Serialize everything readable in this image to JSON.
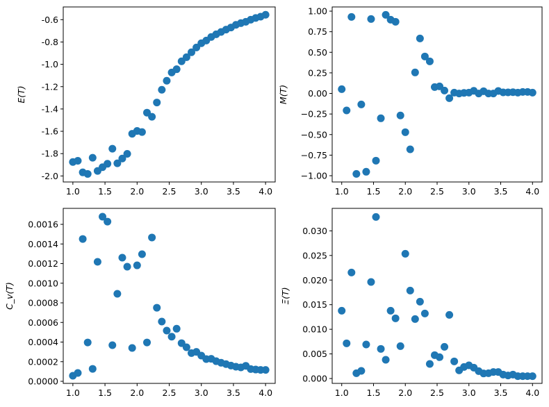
{
  "chart_data": [
    {
      "type": "scatter",
      "ylabel": "E(T)",
      "xlim": [
        0.85,
        4.15
      ],
      "ylim": [
        -2.054,
        -0.486
      ],
      "xticks": [
        "1.0",
        "1.5",
        "2.0",
        "2.5",
        "3.0",
        "3.5",
        "4.0"
      ],
      "yticks": [
        "-2.0",
        "-1.8",
        "-1.6",
        "-1.4",
        "-1.2",
        "-1.0",
        "-0.8",
        "-0.6"
      ],
      "color": "#1f77b4",
      "y": [
        -1.875,
        -1.864,
        -1.968,
        -1.982,
        -1.837,
        -1.955,
        -1.922,
        -1.891,
        -1.756,
        -1.887,
        -1.844,
        -1.802,
        -1.622,
        -1.597,
        -1.607,
        -1.433,
        -1.47,
        -1.342,
        -1.228,
        -1.147,
        -1.073,
        -1.044,
        -0.973,
        -0.936,
        -0.892,
        -0.849,
        -0.811,
        -0.787,
        -0.755,
        -0.731,
        -0.71,
        -0.689,
        -0.67,
        -0.646,
        -0.631,
        -0.619,
        -0.6,
        -0.585,
        -0.573,
        -0.556
      ]
    },
    {
      "type": "scatter",
      "ylabel": "M(T)",
      "xlim": [
        0.85,
        4.15
      ],
      "ylim": [
        -1.076,
        1.051
      ],
      "xticks": [
        "1.0",
        "1.5",
        "2.0",
        "2.5",
        "3.0",
        "3.5",
        "4.0"
      ],
      "yticks": [
        "−1.00",
        "−0.75",
        "−0.50",
        "−0.25",
        "0.00",
        "0.25",
        "0.50",
        "0.75",
        "1.00"
      ],
      "color": "#1f77b4",
      "y": [
        0.052,
        -0.207,
        0.93,
        -0.978,
        -0.134,
        -0.952,
        0.904,
        -0.817,
        -0.302,
        0.955,
        0.896,
        0.871,
        -0.268,
        -0.471,
        -0.679,
        0.255,
        0.668,
        0.449,
        0.39,
        0.077,
        0.086,
        0.035,
        -0.058,
        0.01,
        -0.001,
        0.007,
        0.01,
        0.032,
        -0.001,
        0.027,
        -0.001,
        -0.001,
        0.03,
        0.013,
        0.013,
        0.015,
        0.01,
        0.018,
        0.018,
        0.01
      ]
    },
    {
      "type": "scatter",
      "ylabel": "C_v(T)",
      "xlim": [
        0.85,
        4.15
      ],
      "ylim": [
        -2.12e-05,
        0.001763
      ],
      "xticks": [
        "1.0",
        "1.5",
        "2.0",
        "2.5",
        "3.0",
        "3.5",
        "4.0"
      ],
      "yticks": [
        "0.0000",
        "0.0002",
        "0.0004",
        "0.0006",
        "0.0008",
        "0.0010",
        "0.0012",
        "0.0014",
        "0.0016"
      ],
      "color": "#1f77b4",
      "y": [
        5.66e-05,
        8.5e-05,
        0.001451,
        0.000396,
        0.000127,
        0.001218,
        0.001678,
        0.001628,
        0.000368,
        0.000892,
        0.00126,
        0.001168,
        0.00034,
        0.001182,
        0.001296,
        0.000396,
        0.001466,
        0.00075,
        0.000609,
        0.000517,
        0.000455,
        0.000536,
        0.000389,
        0.000347,
        0.000288,
        0.0003,
        0.000262,
        0.000227,
        0.000229,
        0.000205,
        0.000189,
        0.000175,
        0.00016,
        0.000149,
        0.000142,
        0.000158,
        0.000125,
        0.00012,
        0.000116,
        0.000116
      ]
    },
    {
      "type": "scatter",
      "ylabel": "Ξ(T)",
      "xlim": [
        0.85,
        4.15
      ],
      "ylim": [
        -0.00099,
        0.03457
      ],
      "xticks": [
        "1.0",
        "1.5",
        "2.0",
        "2.5",
        "3.0",
        "3.5",
        "4.0"
      ],
      "yticks": [
        "0.000",
        "0.005",
        "0.010",
        "0.015",
        "0.020",
        "0.025",
        "0.030"
      ],
      "color": "#1f77b4",
      "y": [
        0.01378,
        0.00715,
        0.02154,
        0.00108,
        0.00155,
        0.00691,
        0.01961,
        0.03282,
        0.00602,
        0.00381,
        0.01378,
        0.01223,
        0.00658,
        0.02534,
        0.01787,
        0.01208,
        0.01561,
        0.01321,
        0.00296,
        0.00475,
        0.00433,
        0.00644,
        0.01293,
        0.00348,
        0.00165,
        0.00235,
        0.00268,
        0.00221,
        0.0015,
        0.00103,
        0.00108,
        0.00132,
        0.00132,
        0.0008,
        0.00061,
        0.0008,
        0.00047,
        0.00047,
        0.00047,
        0.00047
      ]
    }
  ],
  "x_range": {
    "start": 1.0,
    "end": 4.0
  }
}
